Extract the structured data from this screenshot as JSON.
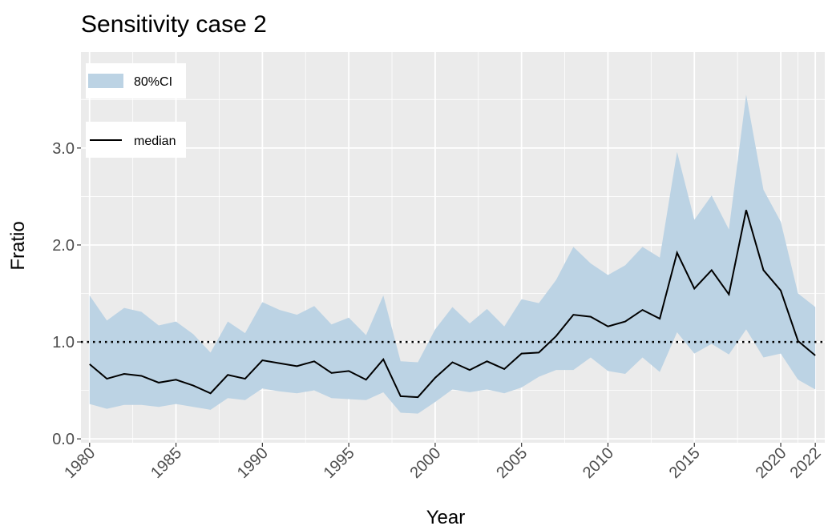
{
  "chart_data": {
    "type": "band-line",
    "title": "Sensitivity case 2",
    "x_label": "Year",
    "y_label": "Fratio",
    "x": [
      1980,
      1981,
      1982,
      1983,
      1984,
      1985,
      1986,
      1987,
      1988,
      1989,
      1990,
      1991,
      1992,
      1993,
      1994,
      1995,
      1996,
      1997,
      1998,
      1999,
      2000,
      2001,
      2002,
      2003,
      2004,
      2005,
      2006,
      2007,
      2008,
      2009,
      2010,
      2011,
      2012,
      2013,
      2014,
      2015,
      2016,
      2017,
      2018,
      2019,
      2020,
      2021,
      2022
    ],
    "band": {
      "name": "80%CI",
      "color": "#bcd3e4",
      "lower": [
        0.36,
        0.31,
        0.35,
        0.35,
        0.33,
        0.36,
        0.33,
        0.3,
        0.42,
        0.4,
        0.52,
        0.49,
        0.47,
        0.5,
        0.42,
        0.41,
        0.4,
        0.48,
        0.27,
        0.26,
        0.38,
        0.51,
        0.48,
        0.51,
        0.47,
        0.53,
        0.64,
        0.71,
        0.71,
        0.84,
        0.7,
        0.67,
        0.84,
        0.69,
        1.1,
        0.88,
        0.98,
        0.87,
        1.13,
        0.84,
        0.88,
        0.61,
        0.51
      ],
      "upper": [
        1.48,
        1.22,
        1.35,
        1.31,
        1.17,
        1.21,
        1.08,
        0.89,
        1.21,
        1.09,
        1.41,
        1.33,
        1.28,
        1.37,
        1.18,
        1.25,
        1.07,
        1.48,
        0.8,
        0.79,
        1.13,
        1.36,
        1.19,
        1.34,
        1.16,
        1.44,
        1.4,
        1.64,
        1.98,
        1.81,
        1.69,
        1.79,
        1.98,
        1.87,
        2.96,
        2.26,
        2.51,
        2.16,
        3.55,
        2.57,
        2.24,
        1.5,
        1.36
      ]
    },
    "series": [
      {
        "name": "median",
        "color": "#000000",
        "values": [
          0.77,
          0.62,
          0.67,
          0.65,
          0.58,
          0.61,
          0.55,
          0.47,
          0.66,
          0.62,
          0.81,
          0.78,
          0.75,
          0.8,
          0.68,
          0.7,
          0.61,
          0.82,
          0.44,
          0.43,
          0.63,
          0.79,
          0.71,
          0.8,
          0.72,
          0.88,
          0.89,
          1.06,
          1.28,
          1.26,
          1.16,
          1.21,
          1.33,
          1.24,
          1.92,
          1.55,
          1.74,
          1.49,
          2.36,
          1.74,
          1.53,
          1.01,
          0.86
        ]
      }
    ],
    "hline": 1,
    "xlim": [
      1979.5,
      2022.55
    ],
    "ylim": [
      -0.04,
      3.99
    ],
    "xticks": [
      1980,
      1985,
      1990,
      1995,
      2000,
      2005,
      2010,
      2015,
      2020,
      2022
    ],
    "yticks": [
      {
        "value": 0,
        "label": "0.0"
      },
      {
        "value": 1,
        "label": "1.0"
      },
      {
        "value": 2,
        "label": "2.0"
      },
      {
        "value": 3,
        "label": "3.0"
      }
    ],
    "grid": true,
    "legend": "top-left"
  }
}
